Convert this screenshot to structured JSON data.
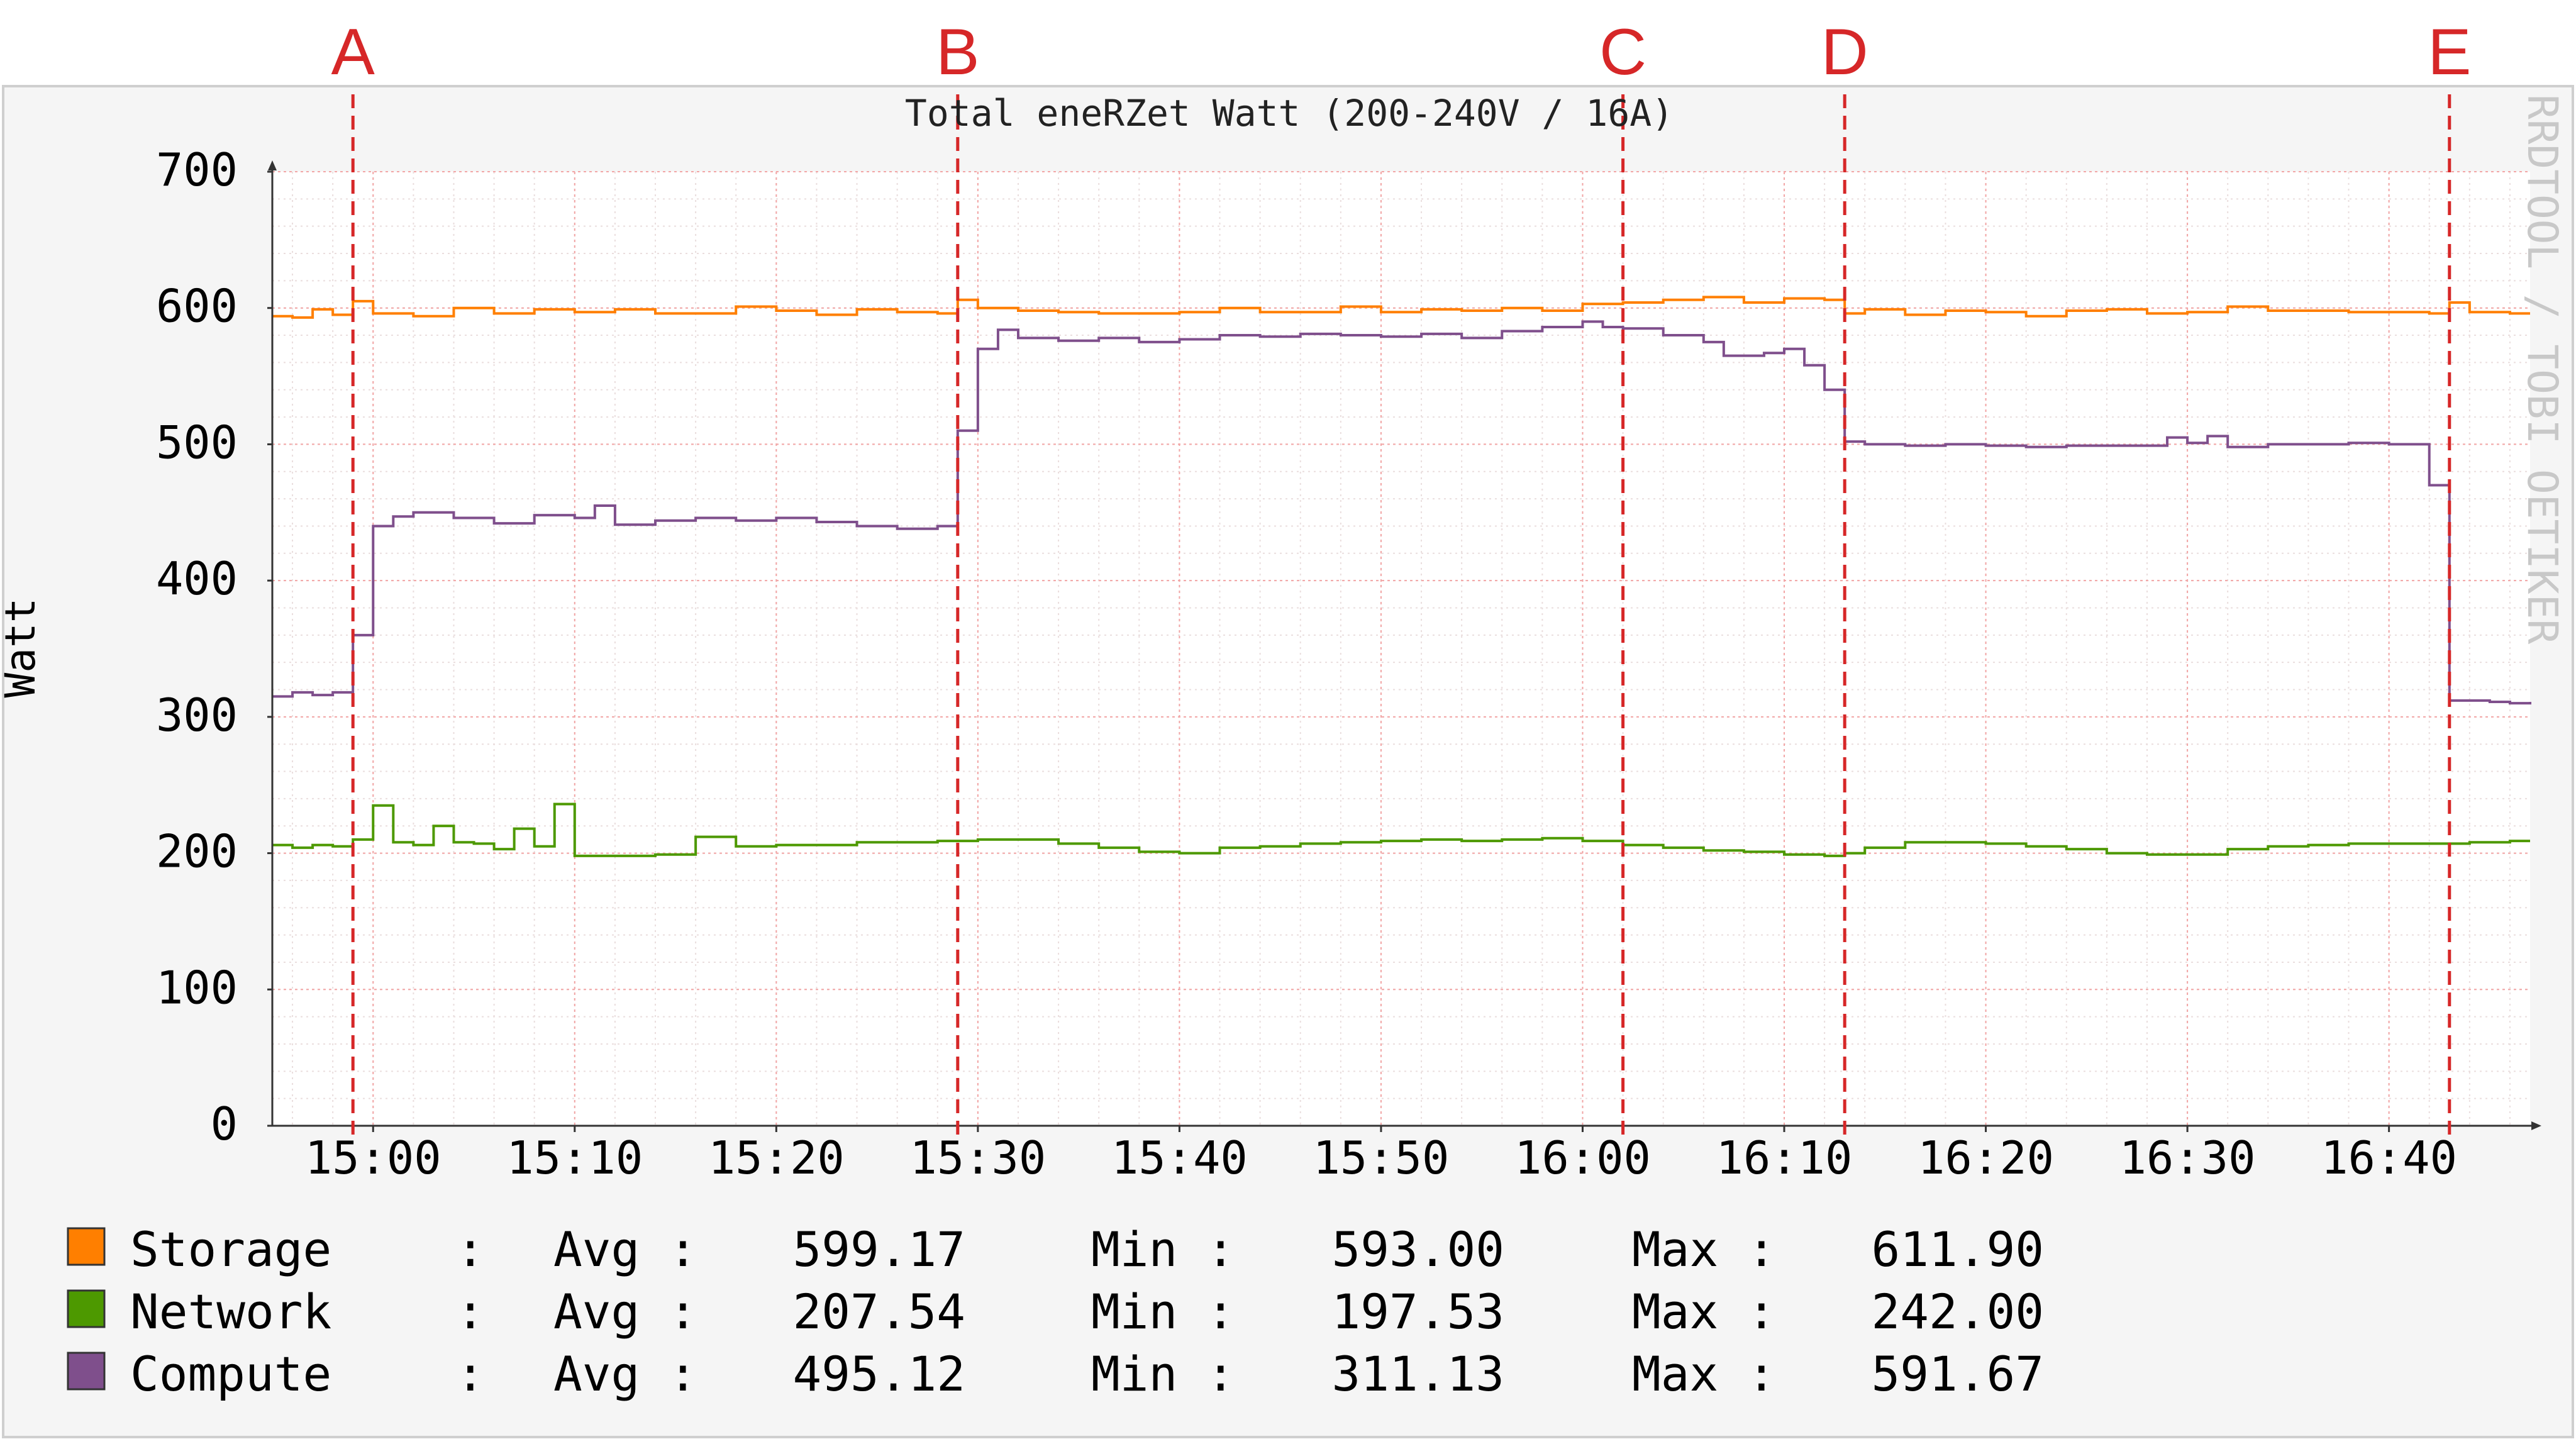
{
  "chart_data": {
    "type": "line",
    "title": "Total eneRZet Watt (200-240V / 16A)",
    "ylabel": "Watt",
    "xlabel": "",
    "watermark": "RRDTOOL / TOBI OETIKER",
    "ylim": [
      0,
      700
    ],
    "xlim": [
      "14:55",
      "16:47"
    ],
    "grid": true,
    "y_ticks": [
      0,
      100,
      200,
      300,
      400,
      500,
      600,
      700
    ],
    "x_ticks": [
      "15:00",
      "15:10",
      "15:20",
      "15:30",
      "15:40",
      "15:50",
      "16:00",
      "16:10",
      "16:20",
      "16:30",
      "16:40"
    ],
    "annotations": [
      {
        "label": "A",
        "time": "14:59"
      },
      {
        "label": "B",
        "time": "15:29"
      },
      {
        "label": "C",
        "time": "16:02"
      },
      {
        "label": "D",
        "time": "16:13"
      },
      {
        "label": "E",
        "time": "16:43"
      }
    ],
    "series": [
      {
        "name": "Storage",
        "color": "#ff7f00",
        "points": [
          [
            "14:55",
            594
          ],
          [
            "14:56",
            593
          ],
          [
            "14:57",
            599
          ],
          [
            "14:58",
            595
          ],
          [
            "14:59",
            605
          ],
          [
            "15:00",
            596
          ],
          [
            "15:02",
            594
          ],
          [
            "15:04",
            600
          ],
          [
            "15:06",
            596
          ],
          [
            "15:08",
            599
          ],
          [
            "15:10",
            597
          ],
          [
            "15:12",
            599
          ],
          [
            "15:14",
            596
          ],
          [
            "15:16",
            596
          ],
          [
            "15:18",
            601
          ],
          [
            "15:20",
            598
          ],
          [
            "15:22",
            595
          ],
          [
            "15:24",
            599
          ],
          [
            "15:26",
            597
          ],
          [
            "15:28",
            596
          ],
          [
            "15:29",
            606
          ],
          [
            "15:30",
            600
          ],
          [
            "15:32",
            598
          ],
          [
            "15:34",
            597
          ],
          [
            "15:36",
            596
          ],
          [
            "15:38",
            596
          ],
          [
            "15:40",
            597
          ],
          [
            "15:42",
            600
          ],
          [
            "15:44",
            597
          ],
          [
            "15:46",
            597
          ],
          [
            "15:48",
            601
          ],
          [
            "15:50",
            597
          ],
          [
            "15:52",
            599
          ],
          [
            "15:54",
            598
          ],
          [
            "15:56",
            600
          ],
          [
            "15:58",
            598
          ],
          [
            "16:00",
            603
          ],
          [
            "16:02",
            604
          ],
          [
            "16:04",
            606
          ],
          [
            "16:06",
            608
          ],
          [
            "16:08",
            604
          ],
          [
            "16:10",
            607
          ],
          [
            "16:12",
            606
          ],
          [
            "16:13",
            596
          ],
          [
            "16:14",
            599
          ],
          [
            "16:16",
            595
          ],
          [
            "16:18",
            598
          ],
          [
            "16:20",
            597
          ],
          [
            "16:22",
            594
          ],
          [
            "16:24",
            598
          ],
          [
            "16:26",
            599
          ],
          [
            "16:28",
            596
          ],
          [
            "16:30",
            597
          ],
          [
            "16:32",
            601
          ],
          [
            "16:34",
            598
          ],
          [
            "16:36",
            598
          ],
          [
            "16:38",
            597
          ],
          [
            "16:40",
            597
          ],
          [
            "16:42",
            596
          ],
          [
            "16:43",
            604
          ],
          [
            "16:44",
            597
          ],
          [
            "16:46",
            596
          ],
          [
            "16:47",
            596
          ]
        ]
      },
      {
        "name": "Network",
        "color": "#4d9900",
        "points": [
          [
            "14:55",
            206
          ],
          [
            "14:56",
            204
          ],
          [
            "14:57",
            206
          ],
          [
            "14:58",
            205
          ],
          [
            "14:59",
            210
          ],
          [
            "15:00",
            235
          ],
          [
            "15:01",
            208
          ],
          [
            "15:02",
            206
          ],
          [
            "15:03",
            220
          ],
          [
            "15:04",
            208
          ],
          [
            "15:05",
            207
          ],
          [
            "15:06",
            203
          ],
          [
            "15:07",
            218
          ],
          [
            "15:08",
            205
          ],
          [
            "15:09",
            236
          ],
          [
            "15:10",
            198
          ],
          [
            "15:12",
            198
          ],
          [
            "15:14",
            199
          ],
          [
            "15:16",
            212
          ],
          [
            "15:18",
            205
          ],
          [
            "15:20",
            206
          ],
          [
            "15:22",
            206
          ],
          [
            "15:24",
            208
          ],
          [
            "15:26",
            208
          ],
          [
            "15:28",
            209
          ],
          [
            "15:30",
            210
          ],
          [
            "15:32",
            210
          ],
          [
            "15:34",
            207
          ],
          [
            "15:36",
            204
          ],
          [
            "15:38",
            201
          ],
          [
            "15:40",
            200
          ],
          [
            "15:42",
            204
          ],
          [
            "15:44",
            205
          ],
          [
            "15:46",
            207
          ],
          [
            "15:48",
            208
          ],
          [
            "15:50",
            209
          ],
          [
            "15:52",
            210
          ],
          [
            "15:54",
            209
          ],
          [
            "15:56",
            210
          ],
          [
            "15:58",
            211
          ],
          [
            "16:00",
            209
          ],
          [
            "16:02",
            206
          ],
          [
            "16:04",
            204
          ],
          [
            "16:06",
            202
          ],
          [
            "16:08",
            201
          ],
          [
            "16:10",
            199
          ],
          [
            "16:12",
            198
          ],
          [
            "16:13",
            200
          ],
          [
            "16:14",
            204
          ],
          [
            "16:16",
            208
          ],
          [
            "16:18",
            208
          ],
          [
            "16:20",
            207
          ],
          [
            "16:22",
            205
          ],
          [
            "16:24",
            203
          ],
          [
            "16:26",
            200
          ],
          [
            "16:28",
            199
          ],
          [
            "16:30",
            199
          ],
          [
            "16:32",
            203
          ],
          [
            "16:34",
            205
          ],
          [
            "16:36",
            206
          ],
          [
            "16:38",
            207
          ],
          [
            "16:40",
            207
          ],
          [
            "16:42",
            207
          ],
          [
            "16:44",
            208
          ],
          [
            "16:46",
            209
          ],
          [
            "16:47",
            209
          ]
        ]
      },
      {
        "name": "Compute",
        "color": "#7f4f8c",
        "points": [
          [
            "14:55",
            315
          ],
          [
            "14:56",
            318
          ],
          [
            "14:57",
            316
          ],
          [
            "14:58",
            318
          ],
          [
            "14:59",
            335
          ],
          [
            "14:59",
            360
          ],
          [
            "15:00",
            400
          ],
          [
            "15:00",
            440
          ],
          [
            "15:01",
            447
          ],
          [
            "15:02",
            450
          ],
          [
            "15:04",
            446
          ],
          [
            "15:06",
            442
          ],
          [
            "15:08",
            448
          ],
          [
            "15:10",
            446
          ],
          [
            "15:11",
            455
          ],
          [
            "15:12",
            441
          ],
          [
            "15:14",
            444
          ],
          [
            "15:16",
            446
          ],
          [
            "15:18",
            444
          ],
          [
            "15:20",
            446
          ],
          [
            "15:22",
            443
          ],
          [
            "15:24",
            440
          ],
          [
            "15:26",
            438
          ],
          [
            "15:28",
            440
          ],
          [
            "15:29",
            445
          ],
          [
            "15:29",
            510
          ],
          [
            "15:30",
            570
          ],
          [
            "15:31",
            584
          ],
          [
            "15:32",
            578
          ],
          [
            "15:34",
            576
          ],
          [
            "15:36",
            578
          ],
          [
            "15:38",
            575
          ],
          [
            "15:40",
            577
          ],
          [
            "15:42",
            580
          ],
          [
            "15:44",
            579
          ],
          [
            "15:46",
            581
          ],
          [
            "15:48",
            580
          ],
          [
            "15:50",
            579
          ],
          [
            "15:52",
            581
          ],
          [
            "15:54",
            578
          ],
          [
            "15:56",
            583
          ],
          [
            "15:58",
            586
          ],
          [
            "16:00",
            590
          ],
          [
            "16:01",
            586
          ],
          [
            "16:02",
            585
          ],
          [
            "16:04",
            580
          ],
          [
            "16:06",
            575
          ],
          [
            "16:07",
            565
          ],
          [
            "16:09",
            567
          ],
          [
            "16:10",
            570
          ],
          [
            "16:11",
            558
          ],
          [
            "16:12",
            540
          ],
          [
            "16:13",
            520
          ],
          [
            "16:13",
            502
          ],
          [
            "16:14",
            500
          ],
          [
            "16:16",
            499
          ],
          [
            "16:18",
            500
          ],
          [
            "16:20",
            499
          ],
          [
            "16:22",
            498
          ],
          [
            "16:24",
            499
          ],
          [
            "16:26",
            499
          ],
          [
            "16:28",
            499
          ],
          [
            "16:29",
            505
          ],
          [
            "16:30",
            501
          ],
          [
            "16:31",
            506
          ],
          [
            "16:32",
            498
          ],
          [
            "16:34",
            500
          ],
          [
            "16:36",
            500
          ],
          [
            "16:38",
            501
          ],
          [
            "16:40",
            500
          ],
          [
            "16:42",
            500
          ],
          [
            "16:42",
            470
          ],
          [
            "16:43",
            380
          ],
          [
            "16:43",
            312
          ],
          [
            "16:44",
            312
          ],
          [
            "16:45",
            311
          ],
          [
            "16:46",
            310
          ],
          [
            "16:47",
            311
          ]
        ]
      }
    ]
  },
  "legend": [
    {
      "name": "Storage",
      "sep": ":",
      "avg_label": "Avg :",
      "avg": "599.17",
      "min_label": "Min :",
      "min": "593.00",
      "max_label": "Max :",
      "max": "611.90",
      "color": "#ff7f00"
    },
    {
      "name": "Network",
      "sep": ":",
      "avg_label": "Avg :",
      "avg": "207.54",
      "min_label": "Min :",
      "min": "197.53",
      "max_label": "Max :",
      "max": "242.00",
      "color": "#4d9900"
    },
    {
      "name": "Compute",
      "sep": ":",
      "avg_label": "Avg :",
      "avg": "495.12",
      "min_label": "Min :",
      "min": "311.13",
      "max_label": "Max :",
      "max": "591.67",
      "color": "#7f4f8c"
    }
  ]
}
